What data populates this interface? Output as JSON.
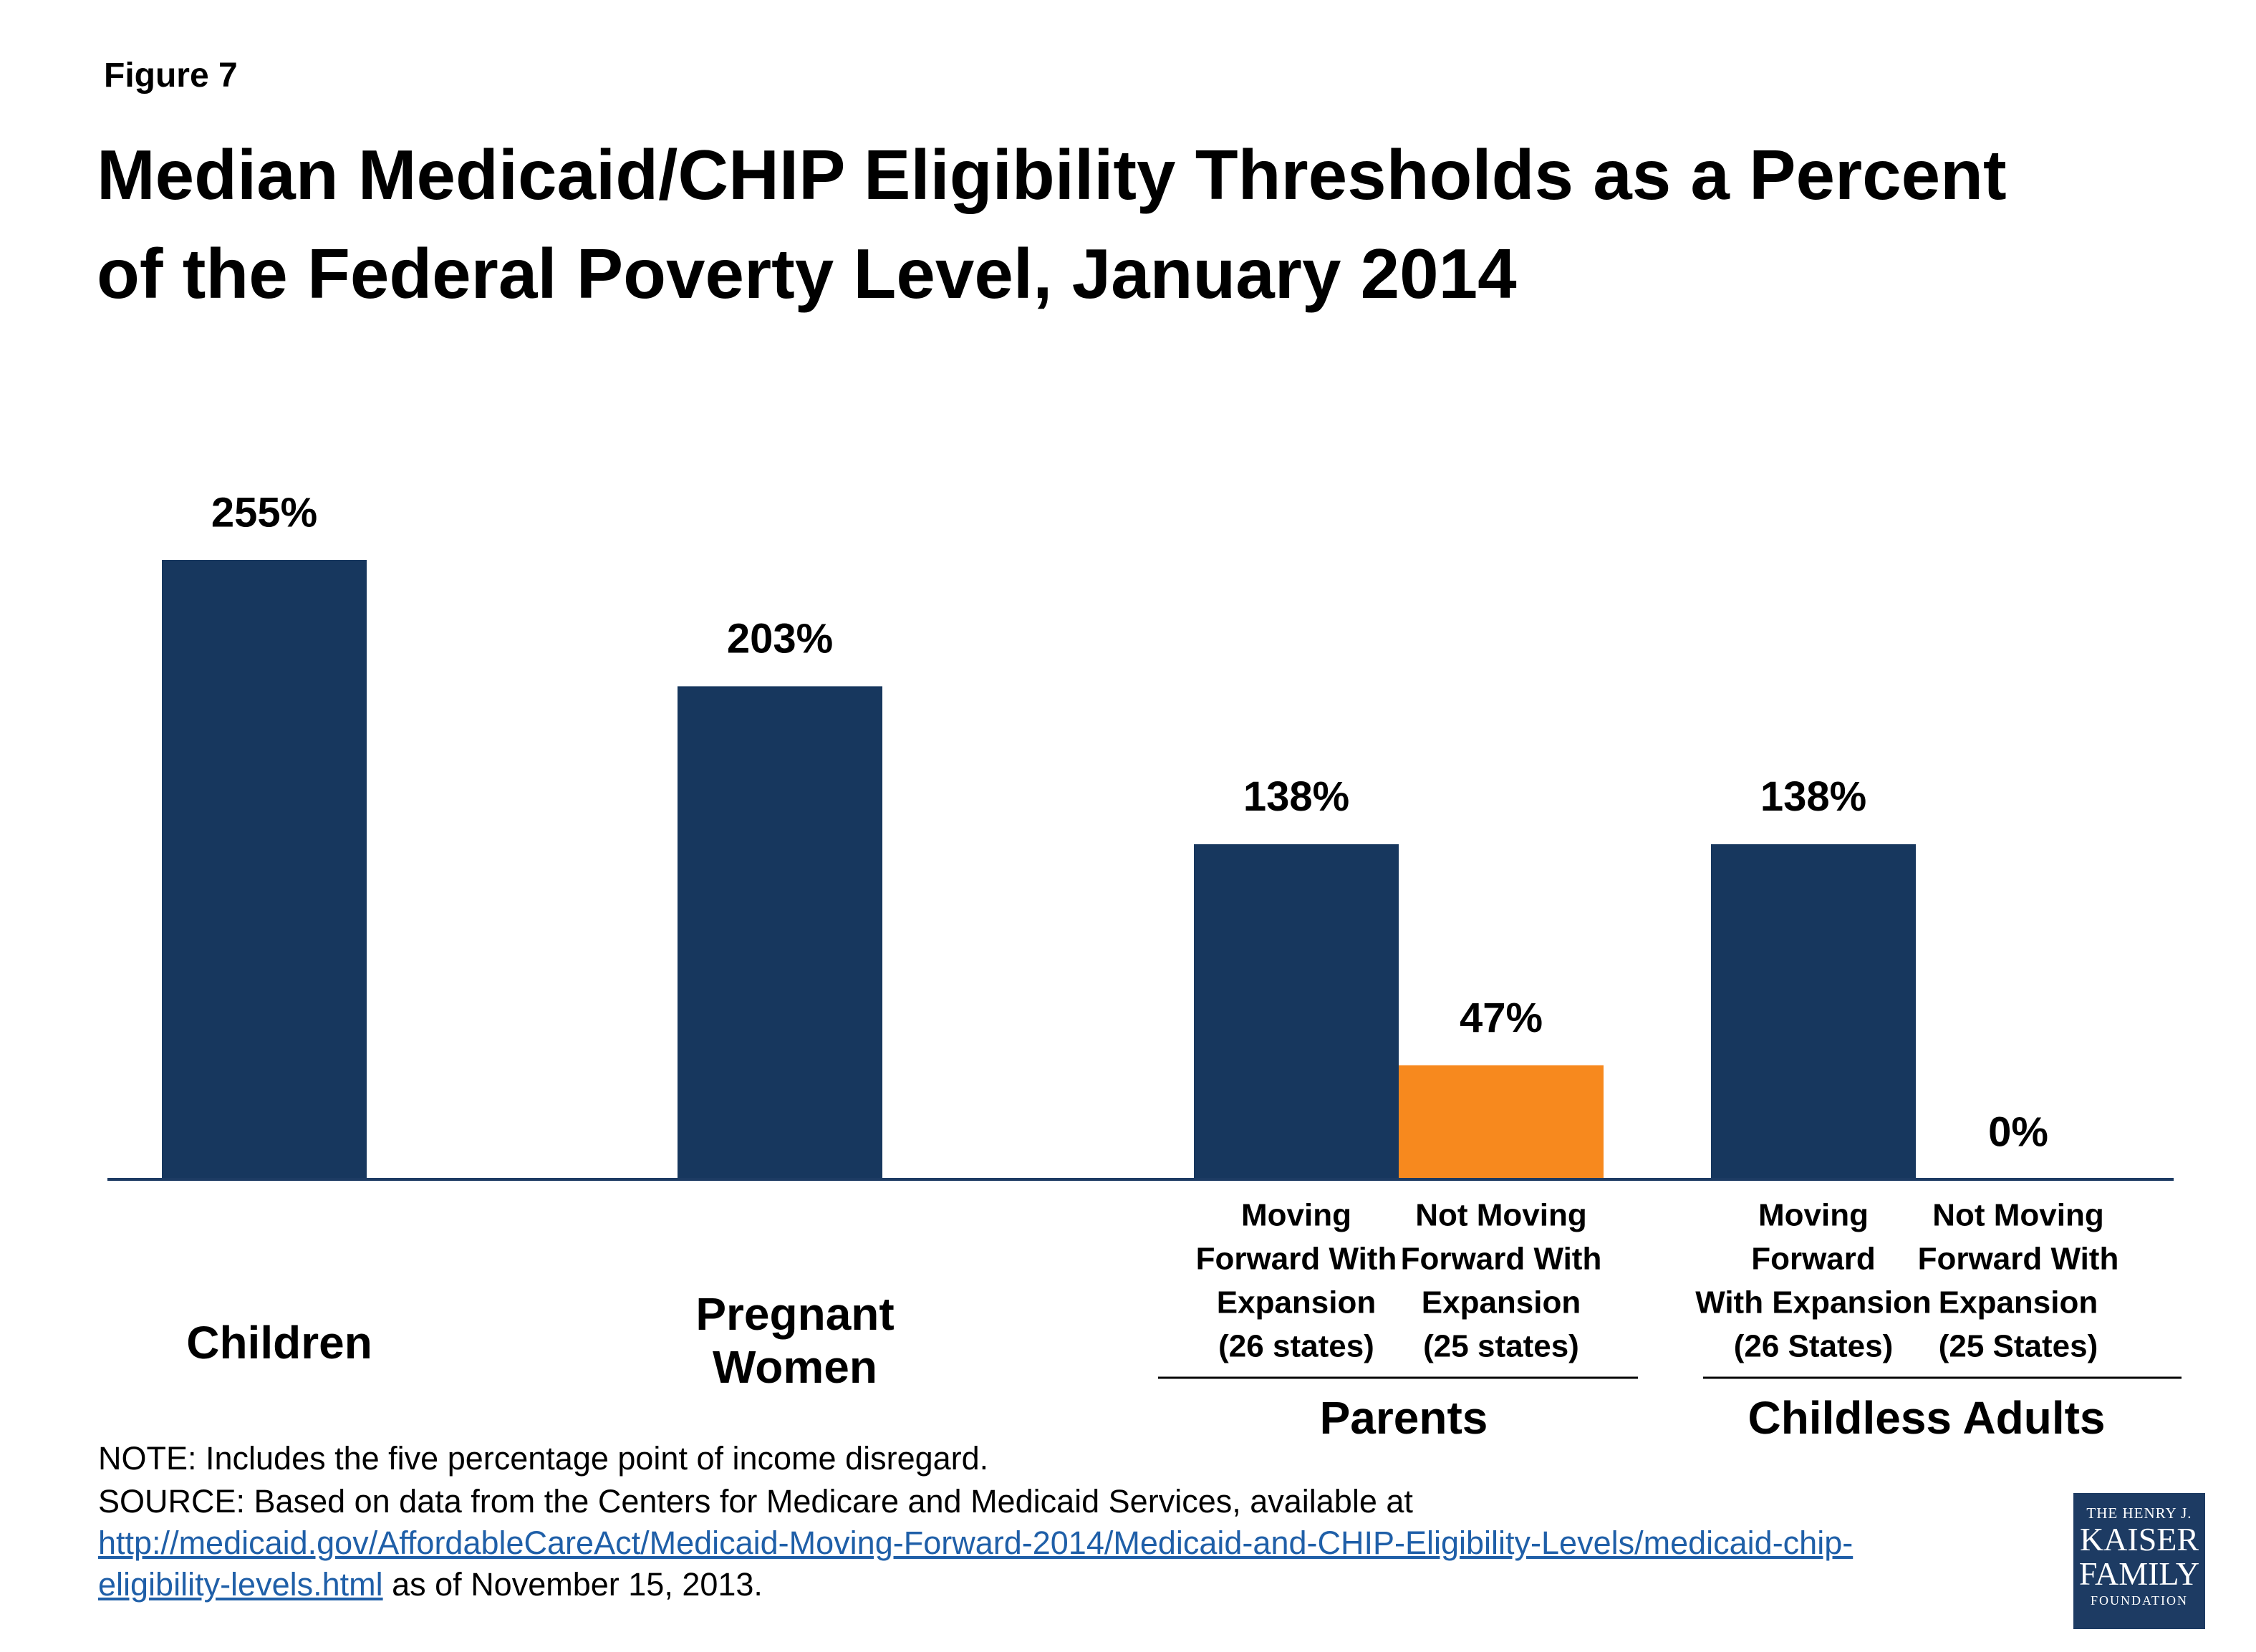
{
  "figure_label": "Figure 7",
  "title_lines": [
    "Median Medicaid/CHIP Eligibility Thresholds as a Percent",
    "of the Federal Poverty Level, January 2014"
  ],
  "colors": {
    "navy": "#17375e",
    "orange": "#f7891e",
    "axis": "#1d3b63",
    "link": "#1f5fa8"
  },
  "chart_data": {
    "type": "bar",
    "title": "Median Medicaid/CHIP Eligibility Thresholds as a Percent of the Federal Poverty Level, January 2014",
    "unit": "%",
    "ylim": [
      0,
      255
    ],
    "grid": false,
    "legend": "none",
    "bars": [
      {
        "value": 255,
        "label": "255%",
        "color": "#17375e",
        "category_lines": [],
        "group": "Children"
      },
      {
        "value": 203,
        "label": "203%",
        "color": "#17375e",
        "category_lines": [],
        "group": "Pregnant Women"
      },
      {
        "value": 138,
        "label": "138%",
        "color": "#17375e",
        "category_lines": [
          "Moving",
          "Forward With",
          "Expansion",
          "(26 states)"
        ],
        "group": "Parents"
      },
      {
        "value": 47,
        "label": "47%",
        "color": "#f7891e",
        "category_lines": [
          "Not Moving",
          "Forward  With",
          "Expansion",
          "(25 states)"
        ],
        "group": "Parents"
      },
      {
        "value": 138,
        "label": "138%",
        "color": "#17375e",
        "category_lines": [
          "Moving",
          "Forward",
          "With Expansion",
          "(26 States)"
        ],
        "group": "Childless Adults"
      },
      {
        "value": 0,
        "label": "0%",
        "color": "#17375e",
        "category_lines": [
          "Not Moving",
          "Forward With",
          "Expansion",
          "(25 States)"
        ],
        "group": "Childless Adults"
      }
    ],
    "groups": [
      {
        "name": "Children",
        "lines": [
          "Children"
        ]
      },
      {
        "name": "Pregnant Women",
        "lines": [
          "Pregnant",
          "Women"
        ]
      },
      {
        "name": "Parents",
        "lines": [
          "Parents"
        ]
      },
      {
        "name": "Childless Adults",
        "lines": [
          "Childless Adults"
        ]
      }
    ]
  },
  "note": "NOTE: Includes the five percentage point of income disregard.",
  "source_prefix": "SOURCE: Based on data from the Centers for Medicare and Medicaid Services, available at",
  "source_url_line1": "http://medicaid.gov/AffordableCareAct/Medicaid-Moving-Forward-2014/Medicaid-and-CHIP-Eligibility-Levels/medicaid-chip-",
  "source_url_line2": "eligibility-levels.html",
  "source_suffix": " as of November 15, 2013.",
  "logo": {
    "line1": "THE HENRY J.",
    "line2": "KAISER",
    "line3": "FAMILY",
    "line4": "FOUNDATION"
  }
}
